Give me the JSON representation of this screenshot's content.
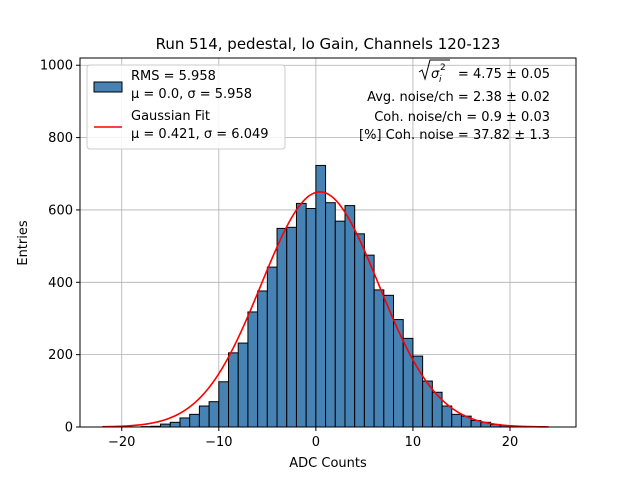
{
  "chart_data": {
    "type": "bar",
    "title": "Run 514, pedestal, lo Gain, Channels 120-123",
    "xlabel": "ADC Counts",
    "ylabel": "Entries",
    "xlim": [
      -24.3,
      26.8
    ],
    "ylim": [
      0,
      1020
    ],
    "xticks": [
      -20,
      -10,
      0,
      10,
      20
    ],
    "yticks": [
      0,
      200,
      400,
      600,
      800,
      1000
    ],
    "xtick_labels": [
      "−20",
      "−10",
      "0",
      "10",
      "20"
    ],
    "ytick_labels": [
      "0",
      "200",
      "400",
      "600",
      "800",
      "1000"
    ],
    "grid": true,
    "legend_position": "top-left",
    "bin_edges": [
      -22,
      -21,
      -20,
      -19,
      -18,
      -17,
      -16,
      -15,
      -14,
      -13,
      -12,
      -11,
      -10,
      -9,
      -8,
      -7,
      -6,
      -5,
      -4,
      -3,
      -2,
      -1,
      0,
      1,
      2,
      3,
      4,
      5,
      6,
      7,
      8,
      9,
      10,
      11,
      12,
      13,
      14,
      15,
      16,
      17,
      18,
      19,
      20,
      21,
      22,
      23,
      24
    ],
    "counts": [
      0,
      0,
      0,
      0,
      1,
      2,
      8,
      13,
      25,
      35,
      58,
      70,
      125,
      205,
      232,
      318,
      376,
      442,
      549,
      552,
      618,
      604,
      723,
      620,
      569,
      612,
      534,
      475,
      379,
      364,
      297,
      245,
      196,
      127,
      96,
      58,
      35,
      30,
      18,
      13,
      7,
      4,
      2,
      1,
      0,
      0
    ],
    "series": [
      {
        "name": "RMS = 5.958",
        "name_line2": "μ = 0.0, σ = 5.958",
        "kind": "histogram",
        "color": "#4682b4"
      },
      {
        "name": "Gaussian Fit",
        "name_line2": "μ = 0.421, σ = 6.049",
        "kind": "line",
        "color": "#ff0000",
        "mu": 0.421,
        "sigma": 6.049,
        "amplitude": 650,
        "x_range": [
          -22,
          24
        ]
      }
    ],
    "annotations": [
      "= 4.75 ± 0.05",
      "Avg. noise/ch = 2.38 ± 0.02",
      "Coh. noise/ch = 0.9 ± 0.03",
      "[%] Coh. noise = 37.82 ± 1.3"
    ]
  }
}
